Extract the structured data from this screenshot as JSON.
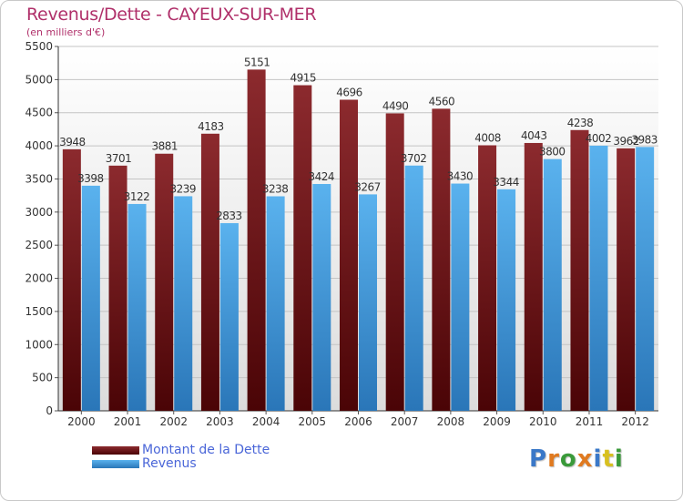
{
  "chart_data": {
    "type": "bar",
    "title": "Revenus/Dette - CAYEUX-SUR-MER",
    "subtitle": "(en milliers d'€)",
    "categories": [
      "2000",
      "2001",
      "2002",
      "2003",
      "2004",
      "2005",
      "2006",
      "2007",
      "2008",
      "2009",
      "2010",
      "2011",
      "2012"
    ],
    "series": [
      {
        "name": "Montant de la Dette",
        "color": "#7a1a1e",
        "values": [
          3948,
          3701,
          3881,
          4183,
          5151,
          4915,
          4696,
          4490,
          4560,
          4008,
          4043,
          4238,
          3962
        ]
      },
      {
        "name": "Revenus",
        "color": "#4aa8ea",
        "values": [
          3398,
          3122,
          3239,
          2833,
          3238,
          3424,
          3267,
          3702,
          3430,
          3344,
          3800,
          4002,
          3983
        ]
      }
    ],
    "ylim": [
      0,
      5500
    ],
    "yticks": [
      0,
      500,
      1000,
      1500,
      2000,
      2500,
      3000,
      3500,
      4000,
      4500,
      5000,
      5500
    ],
    "grid": true,
    "legend": "bottom-left"
  },
  "logo": {
    "letters": [
      "P",
      "r",
      "o",
      "x",
      "i",
      "t",
      "i"
    ],
    "colors": [
      "#3a78c8",
      "#e07a20",
      "#3a9a3a",
      "#e07a20",
      "#3a78c8",
      "#d8c020",
      "#3a9a3a"
    ]
  }
}
